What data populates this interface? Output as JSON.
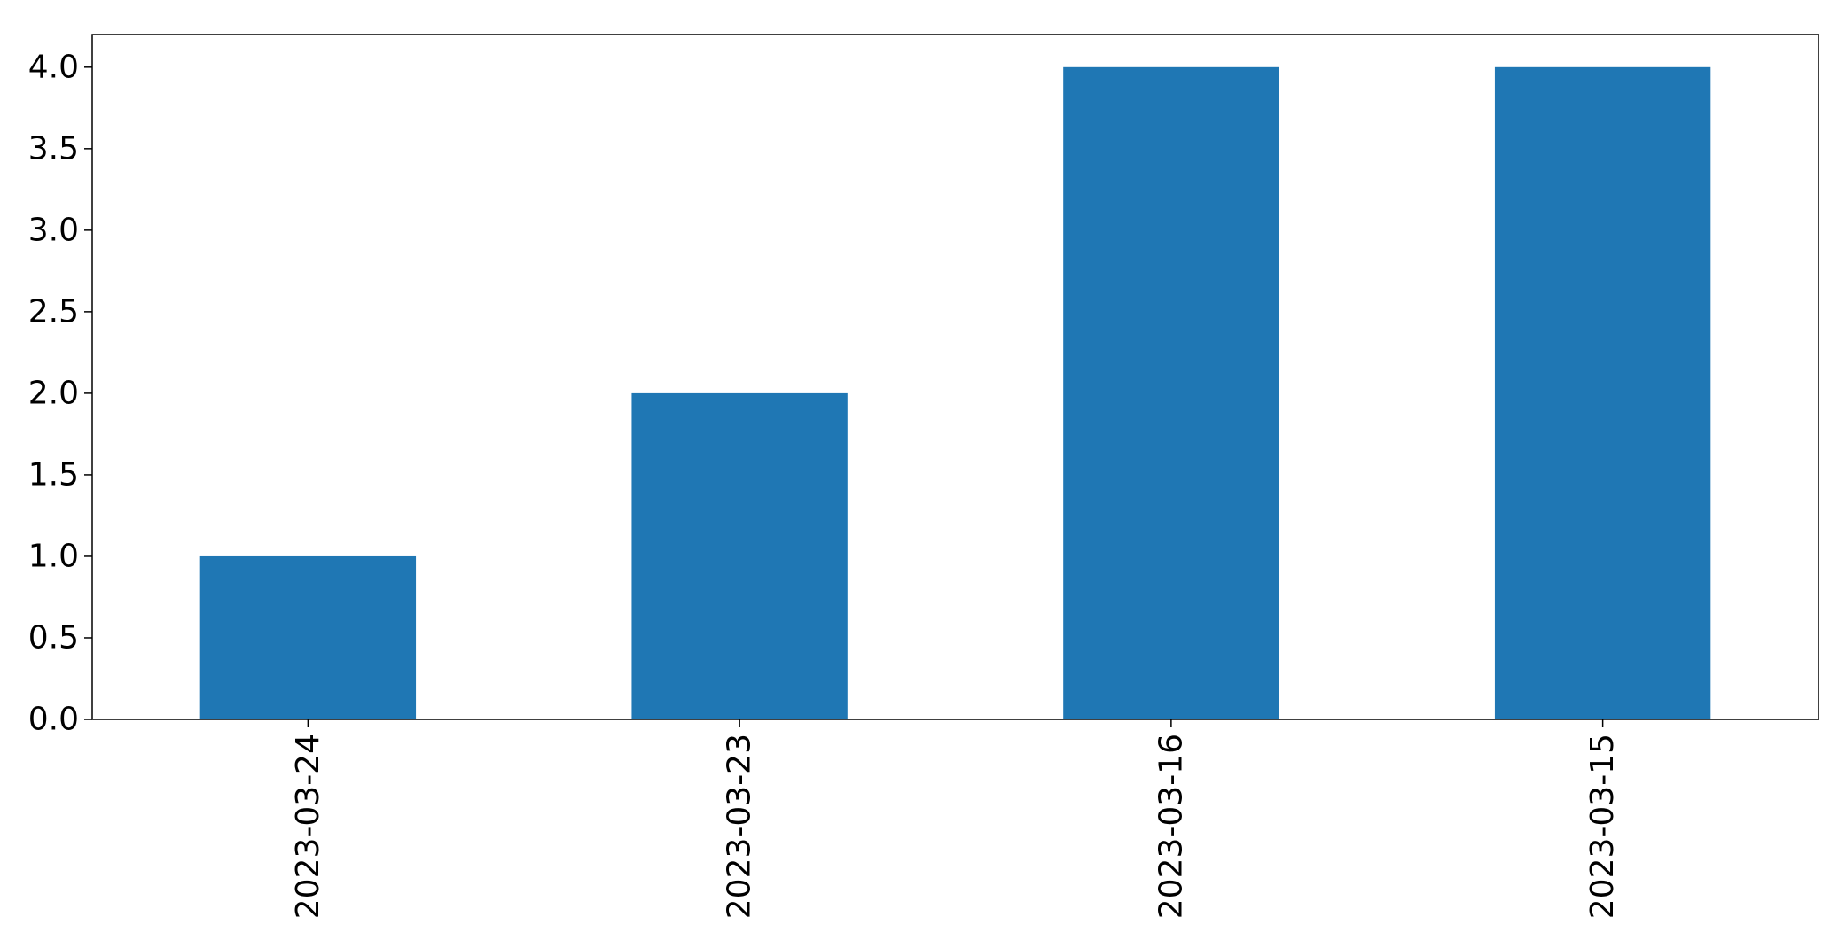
{
  "chart_data": {
    "type": "bar",
    "title": "",
    "xlabel": "",
    "ylabel": "",
    "categories": [
      "2023-03-24",
      "2023-03-23",
      "2023-03-16",
      "2023-03-15"
    ],
    "values": [
      1,
      2,
      4,
      4
    ],
    "ylim": [
      0,
      4.2
    ],
    "yticks": [
      0.0,
      0.5,
      1.0,
      1.5,
      2.0,
      2.5,
      3.0,
      3.5,
      4.0
    ],
    "ytick_labels": [
      "0.0",
      "0.5",
      "1.0",
      "1.5",
      "2.0",
      "2.5",
      "3.0",
      "3.5",
      "4.0"
    ],
    "grid": false,
    "legend": "none",
    "bar_color": "#1f77b4",
    "xtick_rotation": "vertical"
  }
}
